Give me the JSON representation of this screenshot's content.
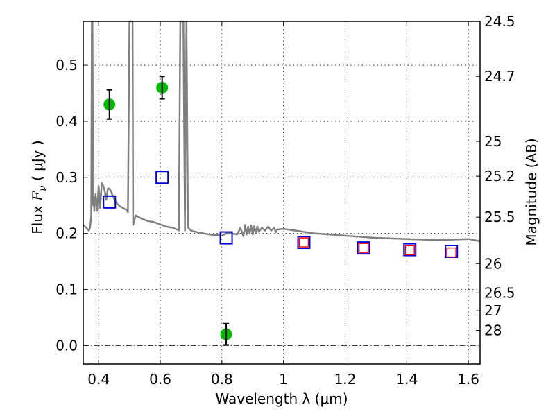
{
  "chart_data": {
    "type": "scatter",
    "title": "",
    "xlabel": "Wavelength  λ (μm)",
    "ylabel": "Flux  F_ν  ( μJy )",
    "ylabel_parts": {
      "prefix": "Flux  ",
      "symbol": "F",
      "subscript": "ν",
      "suffix": "  ( μJy )"
    },
    "y2label": "Magnitude (AB)",
    "xlim": [
      0.35,
      1.638
    ],
    "ylim": [
      -0.033,
      0.578
    ],
    "grid": true,
    "x_ticks": [
      0.4,
      0.6,
      0.8,
      1.0,
      1.2,
      1.4,
      1.6
    ],
    "x_tick_labels": [
      "0.4",
      "0.6",
      "0.8",
      "1",
      "1.2",
      "1.4",
      "1.6"
    ],
    "y_ticks": [
      0.0,
      0.1,
      0.2,
      0.3,
      0.4,
      0.5
    ],
    "y_tick_labels": [
      "0.0",
      "0.1",
      "0.2",
      "0.3",
      "0.4",
      "0.5"
    ],
    "y2_ticks": [
      {
        "label": "24.5",
        "flux": 0.578
      },
      {
        "label": "24.7",
        "flux": 0.48
      },
      {
        "label": "25",
        "flux": 0.364
      },
      {
        "label": "25.2",
        "flux": 0.302
      },
      {
        "label": "25.5",
        "flux": 0.229
      },
      {
        "label": "26",
        "flux": 0.146
      },
      {
        "label": "26.5",
        "flux": 0.094
      },
      {
        "label": "27",
        "flux": 0.062
      },
      {
        "label": "28",
        "flux": 0.027
      }
    ],
    "series": [
      {
        "name": "observed photometry",
        "kind": "points-with-errorbars",
        "color": "#00bb00",
        "x": [
          0.435,
          0.606,
          0.814
        ],
        "y": [
          0.43,
          0.46,
          0.02
        ],
        "yerr": [
          0.026,
          0.02,
          0.019
        ]
      },
      {
        "name": "model photometry (blue)",
        "kind": "open-squares",
        "color": "#0000dd",
        "x": [
          0.435,
          0.606,
          0.814,
          1.066,
          1.26,
          1.41,
          1.545
        ],
        "y": [
          0.256,
          0.3,
          0.192,
          0.184,
          0.174,
          0.171,
          0.168
        ]
      },
      {
        "name": "model photometry (red)",
        "kind": "open-squares-small",
        "color": "#ff0000",
        "x": [
          1.066,
          1.26,
          1.41,
          1.545
        ],
        "y": [
          0.184,
          0.174,
          0.17,
          0.166
        ]
      },
      {
        "name": "SED template spectrum",
        "kind": "line",
        "color": "#808080",
        "x": [
          0.35,
          0.36,
          0.368,
          0.372,
          0.376,
          0.378,
          0.38,
          0.382,
          0.384,
          0.386,
          0.39,
          0.395,
          0.4,
          0.405,
          0.41,
          0.415,
          0.42,
          0.425,
          0.43,
          0.435,
          0.44,
          0.445,
          0.45,
          0.455,
          0.46,
          0.47,
          0.48,
          0.49,
          0.495,
          0.5,
          0.503,
          0.505,
          0.508,
          0.51,
          0.512,
          0.52,
          0.54,
          0.56,
          0.58,
          0.6,
          0.62,
          0.64,
          0.655,
          0.66,
          0.665,
          0.67,
          0.675,
          0.68,
          0.685,
          0.69,
          0.7,
          0.72,
          0.74,
          0.76,
          0.78,
          0.8,
          0.815,
          0.83,
          0.85,
          0.86,
          0.87,
          0.875,
          0.88,
          0.885,
          0.89,
          0.895,
          0.9,
          0.905,
          0.91,
          0.915,
          0.92,
          0.93,
          0.94,
          0.95,
          0.96,
          0.97,
          0.975,
          0.98,
          1.0,
          1.05,
          1.1,
          1.15,
          1.2,
          1.25,
          1.3,
          1.35,
          1.4,
          1.45,
          1.5,
          1.55,
          1.6,
          1.638
        ],
        "y": [
          0.215,
          0.21,
          0.205,
          0.21,
          0.23,
          0.58,
          0.58,
          0.25,
          0.265,
          0.24,
          0.27,
          0.24,
          0.285,
          0.245,
          0.29,
          0.285,
          0.275,
          0.26,
          0.28,
          0.28,
          0.275,
          0.268,
          0.262,
          0.257,
          0.253,
          0.248,
          0.245,
          0.242,
          0.238,
          0.58,
          0.58,
          0.58,
          0.58,
          0.58,
          0.215,
          0.232,
          0.226,
          0.222,
          0.22,
          0.216,
          0.212,
          0.21,
          0.207,
          0.205,
          0.58,
          0.58,
          0.58,
          0.205,
          0.58,
          0.21,
          0.205,
          0.202,
          0.2,
          0.198,
          0.197,
          0.196,
          0.2,
          0.2,
          0.198,
          0.21,
          0.195,
          0.215,
          0.198,
          0.212,
          0.2,
          0.214,
          0.198,
          0.213,
          0.2,
          0.212,
          0.203,
          0.21,
          0.205,
          0.212,
          0.205,
          0.21,
          0.202,
          0.207,
          0.208,
          0.204,
          0.2,
          0.198,
          0.196,
          0.194,
          0.192,
          0.191,
          0.19,
          0.189,
          0.188,
          0.189,
          0.19,
          0.186
        ]
      }
    ],
    "zero_line": {
      "y": 0.0,
      "style": "dash-dot"
    }
  }
}
